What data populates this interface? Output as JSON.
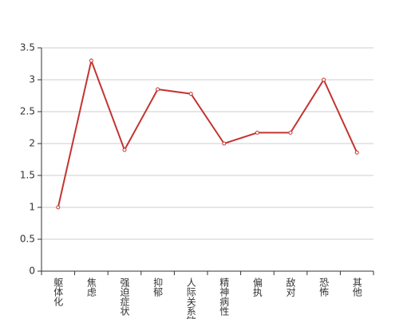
{
  "chart_data": {
    "type": "line",
    "categories": [
      "躯体化",
      "焦虑",
      "强迫症状",
      "抑郁",
      "人际关系敏感",
      "精神病性",
      "偏执",
      "敌对",
      "恐怖",
      "其他"
    ],
    "values": [
      1,
      3.3,
      1.9,
      2.85,
      2.78,
      2.0,
      2.17,
      2.17,
      3.0,
      1.86
    ],
    "color": "#c23531",
    "ylim": [
      0,
      3.5
    ],
    "yticks": [
      0,
      0.5,
      1,
      1.5,
      2,
      2.5,
      3,
      3.5
    ],
    "grid": true
  }
}
